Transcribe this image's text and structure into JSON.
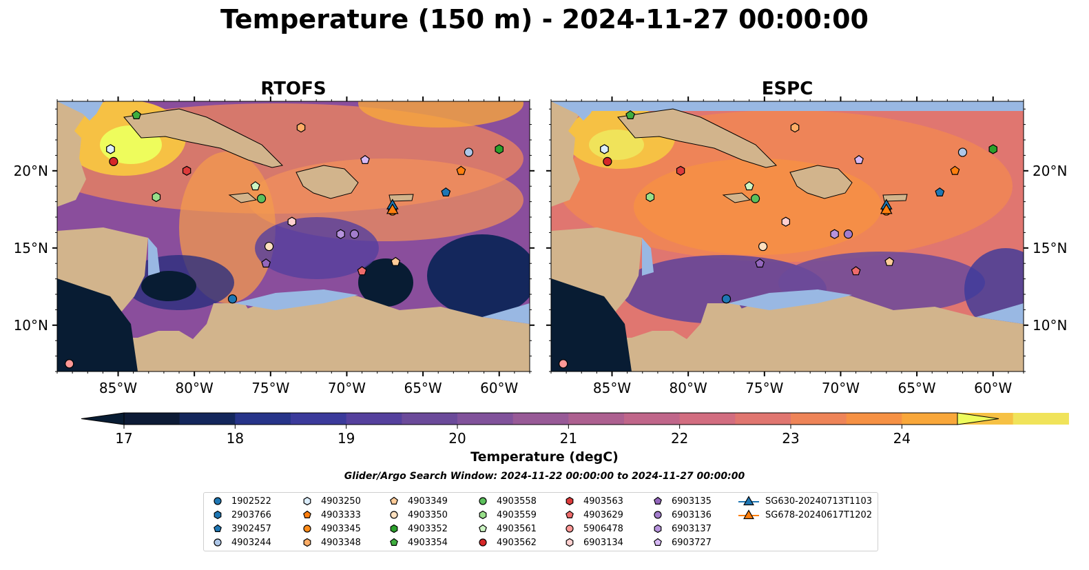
{
  "title": "Temperature (150 m) - 2024-11-27 00:00:00",
  "panels": [
    {
      "name": "RTOFS"
    },
    {
      "name": "ESPC"
    }
  ],
  "lon_ticks": [
    "85°W",
    "80°W",
    "75°W",
    "70°W",
    "65°W",
    "60°W"
  ],
  "lon_values": [
    -85,
    -80,
    -75,
    -70,
    -65,
    -60
  ],
  "lat_ticks": [
    "20°N",
    "15°N",
    "10°N"
  ],
  "lat_values": [
    20,
    15,
    10
  ],
  "extent": {
    "lon": [
      -89,
      -58
    ],
    "lat": [
      7,
      24.5
    ]
  },
  "colorbar": {
    "label": "Temperature (degC)",
    "ticks": [
      "17",
      "18",
      "19",
      "20",
      "21",
      "22",
      "23",
      "24"
    ],
    "min": 17,
    "max": 24.5,
    "step": 0.5,
    "colors": [
      "#0d1b36",
      "#14275c",
      "#273489",
      "#3b3a9b",
      "#55409d",
      "#6b4a9a",
      "#81529b",
      "#985a97",
      "#ad6090",
      "#c0668a",
      "#d26d80",
      "#e07670",
      "#ee8458",
      "#f69144",
      "#f9a73a",
      "#f6c144",
      "#f0e35a"
    ],
    "under_color": "#081c33",
    "over_color": "#eefc5c"
  },
  "search_window": "Glider/Argo Search Window: 2024-11-22 00:00:00 to 2024-11-27 00:00:00",
  "legend": [
    {
      "label": "1902522",
      "shape": "circle",
      "color": "#1f77b4"
    },
    {
      "label": "2903766",
      "shape": "hexagon",
      "color": "#1f77b4"
    },
    {
      "label": "3902457",
      "shape": "pentagon",
      "color": "#1f77b4"
    },
    {
      "label": "4903244",
      "shape": "circle",
      "color": "#aec7e8"
    },
    {
      "label": "4903250",
      "shape": "hexagon",
      "color": "#dceefe"
    },
    {
      "label": "4903333",
      "shape": "pentagon",
      "color": "#ff7f0e"
    },
    {
      "label": "4903345",
      "shape": "circle",
      "color": "#ff8c1a"
    },
    {
      "label": "4903348",
      "shape": "hexagon",
      "color": "#ffad66"
    },
    {
      "label": "4903349",
      "shape": "pentagon",
      "color": "#ffcc99"
    },
    {
      "label": "4903350",
      "shape": "circle",
      "color": "#ffe0bf"
    },
    {
      "label": "4903352",
      "shape": "hexagon",
      "color": "#2ca02c"
    },
    {
      "label": "4903354",
      "shape": "pentagon",
      "color": "#3fae3f"
    },
    {
      "label": "4903558",
      "shape": "circle",
      "color": "#5cc05c"
    },
    {
      "label": "4903559",
      "shape": "hexagon",
      "color": "#98df8a"
    },
    {
      "label": "4903561",
      "shape": "pentagon",
      "color": "#cdf5c4"
    },
    {
      "label": "4903562",
      "shape": "circle",
      "color": "#d62728"
    },
    {
      "label": "4903563",
      "shape": "hexagon",
      "color": "#dd3b3b"
    },
    {
      "label": "4903629",
      "shape": "pentagon",
      "color": "#ee6b6b"
    },
    {
      "label": "5906478",
      "shape": "circle",
      "color": "#ff9896"
    },
    {
      "label": "6903134",
      "shape": "hexagon",
      "color": "#ffd0cf"
    },
    {
      "label": "6903135",
      "shape": "pentagon",
      "color": "#9467bd"
    },
    {
      "label": "6903136",
      "shape": "circle",
      "color": "#a37dcc"
    },
    {
      "label": "6903137",
      "shape": "hexagon",
      "color": "#b793dd"
    },
    {
      "label": "6903727",
      "shape": "pentagon",
      "color": "#d7b9f5"
    },
    {
      "label": "SG630-20240713T1103",
      "shape": "triangle-line",
      "color": "#1f77b4"
    },
    {
      "label": "SG678-20240617T1202",
      "shape": "triangle-line",
      "color": "#ff7f0e"
    }
  ],
  "observations": [
    {
      "id": "1902522",
      "lon": -77.5,
      "lat": 11.7
    },
    {
      "id": "2903766",
      "lon": -85.5,
      "lat": 21.4
    },
    {
      "id": "3902457",
      "lon": -63.5,
      "lat": 18.6
    },
    {
      "id": "4903244",
      "lon": -62.0,
      "lat": 21.2
    },
    {
      "id": "4903250",
      "lon": -85.5,
      "lat": 21.4
    },
    {
      "id": "4903333",
      "lon": -62.5,
      "lat": 20.0
    },
    {
      "id": "4903345",
      "lon": -67.0,
      "lat": 17.4
    },
    {
      "id": "4903348",
      "lon": -73.0,
      "lat": 22.8
    },
    {
      "id": "4903349",
      "lon": -66.8,
      "lat": 14.1
    },
    {
      "id": "4903350",
      "lon": -75.1,
      "lat": 15.1
    },
    {
      "id": "4903352",
      "lon": -60.0,
      "lat": 21.4
    },
    {
      "id": "4903354",
      "lon": -83.8,
      "lat": 23.6
    },
    {
      "id": "4903558",
      "lon": -75.6,
      "lat": 18.2
    },
    {
      "id": "4903559",
      "lon": -82.5,
      "lat": 18.3
    },
    {
      "id": "4903561",
      "lon": -76.0,
      "lat": 19.0
    },
    {
      "id": "4903562",
      "lon": -85.3,
      "lat": 20.6
    },
    {
      "id": "4903563",
      "lon": -80.5,
      "lat": 20.0
    },
    {
      "id": "4903629",
      "lon": -69.0,
      "lat": 13.5
    },
    {
      "id": "5906478",
      "lon": -88.2,
      "lat": 7.5
    },
    {
      "id": "6903134",
      "lon": -73.6,
      "lat": 16.7
    },
    {
      "id": "6903135",
      "lon": -75.3,
      "lat": 14.0
    },
    {
      "id": "6903136",
      "lon": -69.5,
      "lat": 15.9
    },
    {
      "id": "6903137",
      "lon": -70.4,
      "lat": 15.9
    },
    {
      "id": "6903727",
      "lon": -68.8,
      "lat": 20.7
    },
    {
      "id": "SG630-20240713T1103",
      "lon": -67.0,
      "lat": 17.8
    },
    {
      "id": "SG678-20240617T1202",
      "lon": -67.0,
      "lat": 17.5
    }
  ]
}
